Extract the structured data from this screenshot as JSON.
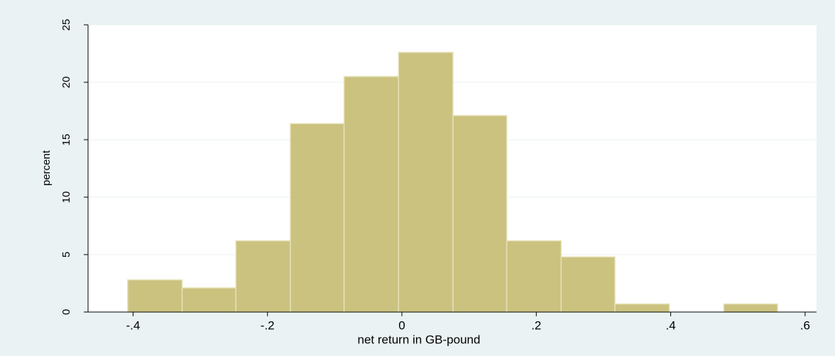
{
  "chart_data": {
    "type": "histogram",
    "x_label": "net return in GB-pound",
    "y_label": "percent",
    "bins": [
      -0.408,
      -0.327,
      -0.247,
      -0.166,
      -0.086,
      -0.005,
      0.076,
      0.156,
      0.237,
      0.317,
      0.398,
      0.479,
      0.559
    ],
    "values": [
      2.8,
      2.1,
      6.2,
      16.4,
      20.5,
      22.6,
      17.1,
      6.2,
      4.8,
      0.7,
      0,
      0.7
    ],
    "color": "#cbc27f",
    "xlim": [
      -0.467,
      0.617
    ],
    "ylim": [
      0,
      25
    ],
    "xticks": [
      {
        "value": -0.4,
        "label": "-.4"
      },
      {
        "value": -0.2,
        "label": "-.2"
      },
      0,
      {
        "value": 0.2,
        "label": ".2"
      },
      {
        "value": 0.4,
        "label": ".4"
      },
      {
        "value": 0.6,
        "label": ".6"
      }
    ],
    "yticks": [
      0,
      5,
      10,
      15,
      20,
      25
    ],
    "grid": true
  }
}
